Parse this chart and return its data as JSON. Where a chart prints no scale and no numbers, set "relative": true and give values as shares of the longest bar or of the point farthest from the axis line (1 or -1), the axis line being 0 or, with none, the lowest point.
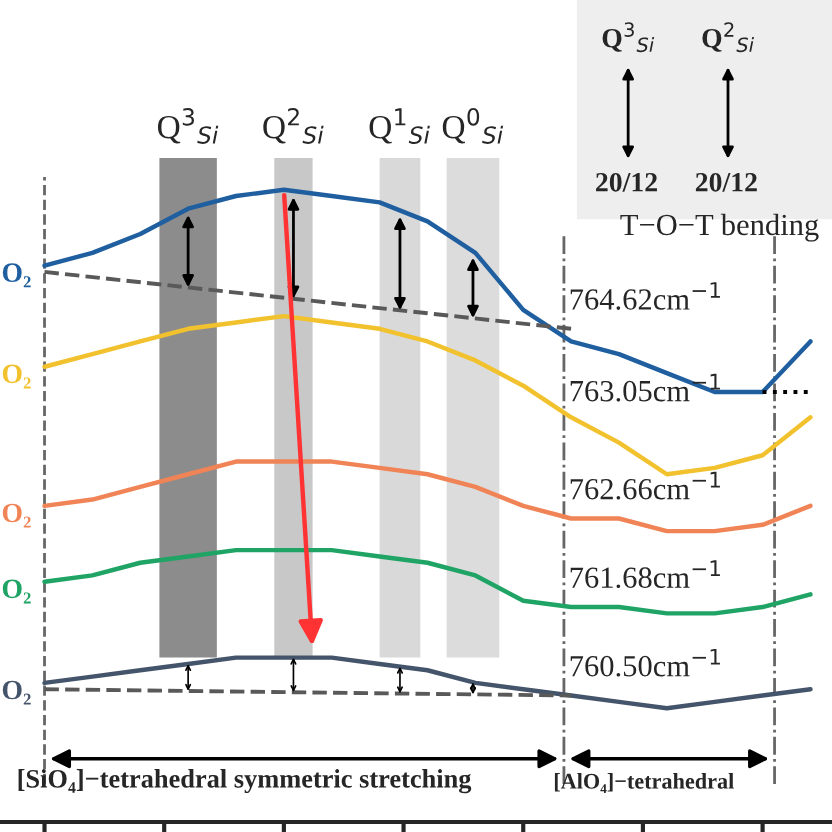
{
  "chart_data": {
    "type": "line",
    "relative": true,
    "grid": false,
    "line_style": "solid",
    "marker": "none",
    "categories": [
      null,
      null,
      null,
      null,
      null,
      null,
      null,
      null,
      null,
      null,
      null,
      null,
      null,
      null,
      null,
      null,
      null
    ],
    "series": [
      {
        "name": "O₂",
        "color": "#1f5fa0",
        "values": [
          0.88,
          0.9,
          0.93,
          0.97,
          0.99,
          1.0,
          0.99,
          0.98,
          0.95,
          0.9,
          0.81,
          0.76,
          0.74,
          0.71,
          0.68,
          0.68,
          0.76
        ]
      },
      {
        "name": "O₂",
        "color": "#f2c12e",
        "values": [
          0.72,
          0.74,
          0.76,
          0.78,
          0.79,
          0.8,
          0.79,
          0.78,
          0.76,
          0.73,
          0.69,
          0.64,
          0.6,
          0.55,
          0.56,
          0.58,
          0.64
        ]
      },
      {
        "name": "O₂",
        "color": "#f08456",
        "values": [
          0.5,
          0.51,
          0.53,
          0.55,
          0.57,
          0.57,
          0.57,
          0.56,
          0.55,
          0.53,
          0.5,
          0.48,
          0.48,
          0.46,
          0.46,
          0.47,
          0.5
        ]
      },
      {
        "name": "O₂",
        "color": "#1fa466",
        "values": [
          0.38,
          0.39,
          0.41,
          0.42,
          0.43,
          0.43,
          0.43,
          0.42,
          0.41,
          0.39,
          0.35,
          0.34,
          0.34,
          0.33,
          0.33,
          0.34,
          0.36
        ]
      },
      {
        "name": "O₂",
        "color": "#44546a",
        "values": [
          0.22,
          0.23,
          0.24,
          0.25,
          0.26,
          0.26,
          0.26,
          0.25,
          0.24,
          0.22,
          0.21,
          0.2,
          0.19,
          0.18,
          0.19,
          0.2,
          0.21
        ]
      },
      {
        "color": "#595959",
        "line_style": "dashed",
        "values": [
          0.87,
          null,
          null,
          null,
          null,
          null,
          null,
          null,
          null,
          null,
          null,
          0.78,
          null,
          null,
          null,
          null,
          null
        ]
      },
      {
        "color": "#595959",
        "line_style": "dashed",
        "values": [
          0.21,
          null,
          null,
          null,
          null,
          null,
          null,
          null,
          null,
          null,
          null,
          0.2,
          null,
          null,
          null,
          null,
          null
        ]
      },
      {
        "color": "#000000",
        "line_style": "dotted",
        "values": [
          null,
          null,
          null,
          null,
          null,
          null,
          null,
          null,
          null,
          null,
          null,
          null,
          null,
          null,
          null,
          0.68,
          0.68
        ]
      }
    ],
    "annotations": [
      "764.62cm$^{−1}$",
      "763.05cm$^{−1}$",
      "762.66cm$^{−1}$",
      "761.68cm$^{−1}$",
      "760.50cm$^{−1}$",
      "[SiO₄]−tetrahedral symmetric stretching",
      "[AlO₄]−tetrahedral",
      "Q$^{3}$$_{Si}$",
      "Q$^{2}$$_{Si}$",
      "Q$^{1}$$_{Si}$",
      "Q$^{0}$$_{Si}$",
      "Q$^{3}$$_{Si}$",
      "Q$^{2}$$_{Si}$",
      "20/12",
      "20/12",
      "T−O−T bending"
    ]
  }
}
